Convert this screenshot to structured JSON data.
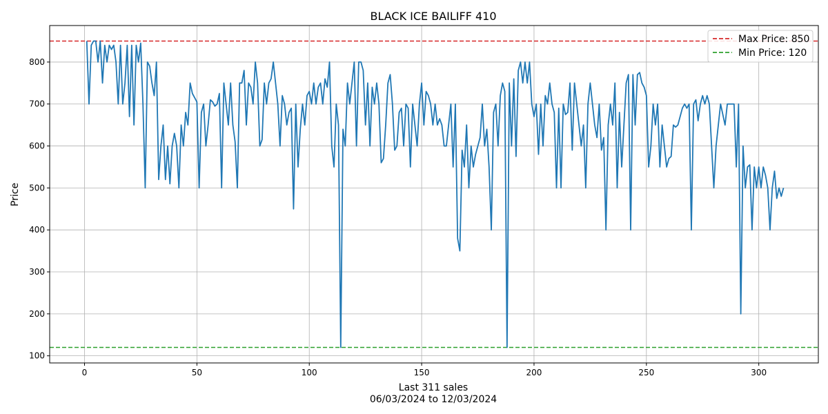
{
  "chart_data": {
    "type": "line",
    "title": "BLACK ICE BAILIFF 410",
    "xlabel": "Last 311 sales",
    "xlabel_sub": "06/03/2024 to 12/03/2024",
    "ylabel": "Price",
    "xlim": [
      -15.5,
      326.5
    ],
    "ylim": [
      83,
      887
    ],
    "xticks": [
      0,
      50,
      100,
      150,
      200,
      250,
      300
    ],
    "yticks": [
      100,
      200,
      300,
      400,
      500,
      600,
      700,
      800
    ],
    "grid": true,
    "legend_position": "top-right",
    "colors": {
      "line": "#1f77b4",
      "max": "#d62728",
      "min": "#2ca02c",
      "grid": "#b0b0b0"
    },
    "reference_lines": [
      {
        "label": "Max Price: 850",
        "y": 850,
        "color": "#d62728",
        "style": "dashed"
      },
      {
        "label": "Min Price: 120",
        "y": 120,
        "color": "#2ca02c",
        "style": "dashed"
      }
    ],
    "series": [
      {
        "color": "#1f77b4",
        "x_start": 1,
        "values": [
          850,
          700,
          840,
          850,
          850,
          800,
          850,
          750,
          840,
          800,
          840,
          830,
          840,
          800,
          700,
          840,
          700,
          750,
          840,
          670,
          840,
          650,
          840,
          800,
          845,
          700,
          500,
          800,
          790,
          750,
          720,
          800,
          520,
          600,
          650,
          520,
          600,
          510,
          600,
          630,
          600,
          500,
          650,
          600,
          680,
          650,
          750,
          725,
          715,
          705,
          500,
          680,
          700,
          600,
          650,
          710,
          705,
          695,
          700,
          725,
          500,
          750,
          700,
          650,
          750,
          650,
          610,
          500,
          750,
          750,
          780,
          650,
          750,
          740,
          700,
          800,
          750,
          600,
          615,
          750,
          700,
          750,
          760,
          800,
          750,
          700,
          600,
          720,
          700,
          650,
          680,
          690,
          450,
          700,
          550,
          640,
          700,
          650,
          720,
          730,
          700,
          750,
          700,
          740,
          750,
          700,
          760,
          740,
          800,
          600,
          550,
          700,
          650,
          120,
          640,
          600,
          750,
          700,
          750,
          800,
          600,
          800,
          800,
          780,
          650,
          750,
          600,
          740,
          700,
          750,
          700,
          560,
          570,
          650,
          750,
          770,
          700,
          590,
          600,
          680,
          690,
          600,
          700,
          690,
          550,
          700,
          650,
          600,
          700,
          750,
          650,
          730,
          720,
          700,
          650,
          700,
          650,
          665,
          650,
          600,
          600,
          650,
          700,
          550,
          700,
          380,
          350,
          590,
          550,
          650,
          500,
          600,
          550,
          580,
          600,
          620,
          700,
          600,
          640,
          550,
          400,
          680,
          700,
          600,
          720,
          750,
          730,
          120,
          750,
          600,
          760,
          575,
          780,
          800,
          750,
          800,
          750,
          800,
          700,
          670,
          700,
          580,
          700,
          600,
          720,
          700,
          750,
          700,
          680,
          500,
          690,
          500,
          700,
          675,
          680,
          750,
          590,
          750,
          700,
          650,
          600,
          650,
          500,
          700,
          750,
          700,
          650,
          620,
          700,
          590,
          620,
          400,
          650,
          700,
          650,
          750,
          500,
          680,
          550,
          650,
          750,
          770,
          400,
          770,
          650,
          770,
          775,
          750,
          740,
          720,
          550,
          600,
          700,
          650,
          700,
          550,
          650,
          600,
          550,
          570,
          575,
          650,
          645,
          650,
          670,
          690,
          700,
          690,
          700,
          400,
          700,
          710,
          660,
          700,
          720,
          700,
          720,
          700,
          600,
          500,
          600,
          650,
          700,
          675,
          650,
          700,
          700,
          700,
          700,
          550,
          700,
          200,
          600,
          500,
          550,
          555,
          400,
          550,
          500,
          550,
          500,
          550,
          530,
          500,
          400,
          500,
          540,
          475,
          500,
          480,
          500
        ]
      }
    ]
  }
}
